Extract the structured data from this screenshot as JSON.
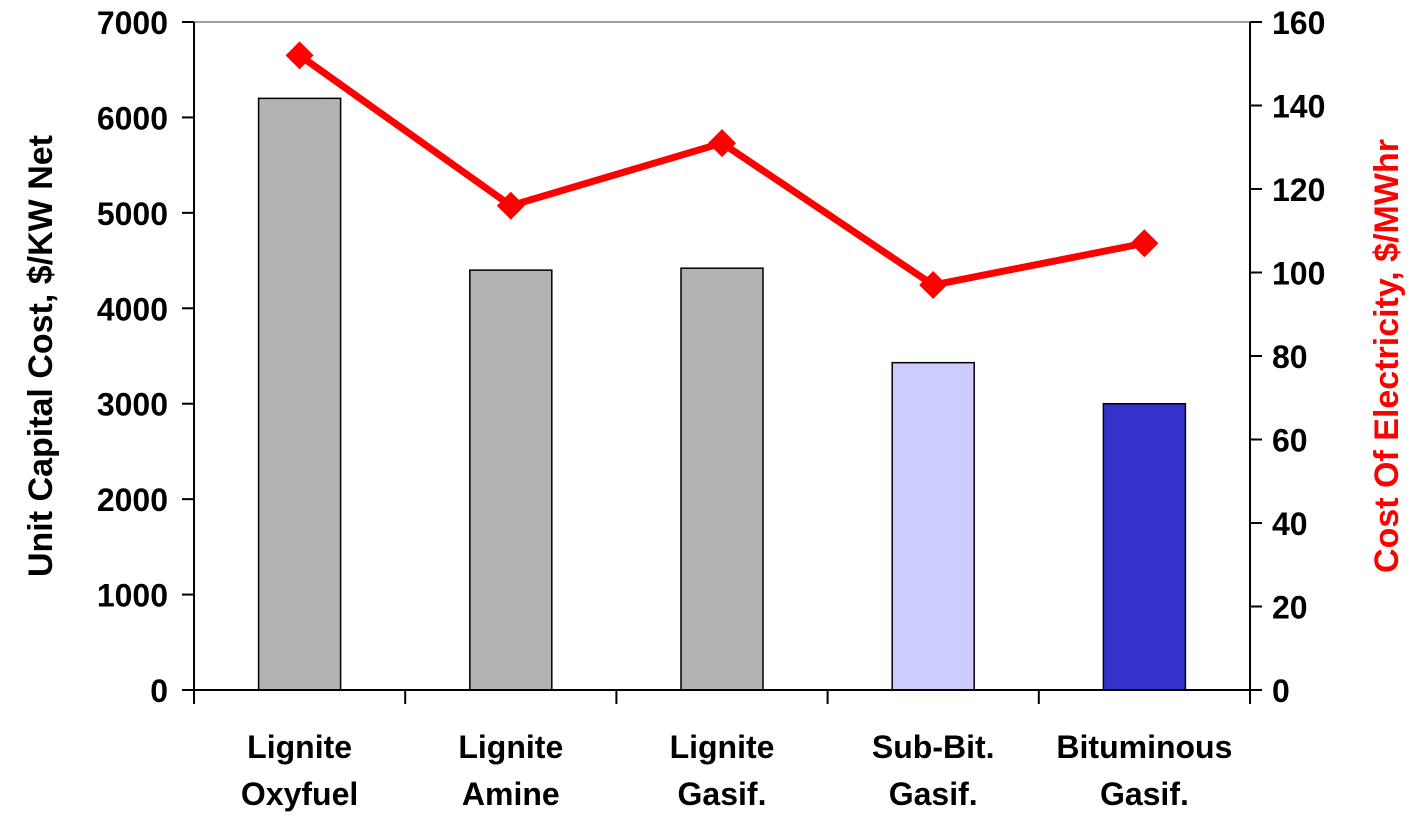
{
  "chart_data": {
    "type": "bar",
    "categories": [
      [
        "Lignite",
        "Oxyfuel"
      ],
      [
        "Lignite",
        "Amine"
      ],
      [
        "Lignite",
        "Gasif."
      ],
      [
        "Sub-Bit.",
        "Gasif."
      ],
      [
        "Bituminous",
        "Gasif."
      ]
    ],
    "series": [
      {
        "axis": "left",
        "kind": "bar",
        "values": [
          6200,
          4400,
          4420,
          3430,
          3000
        ],
        "colors": [
          "#b3b3b3",
          "#b3b3b3",
          "#b3b3b3",
          "#ccccff",
          "#3333cc"
        ]
      },
      {
        "axis": "right",
        "kind": "line",
        "values": [
          152,
          116,
          131,
          97,
          107
        ],
        "color": "#ff0000"
      }
    ],
    "ylabel": "Unit Capital Cost, $/KW Net",
    "ylabel_right": "Cost Of Electricity, $/MWhr",
    "ylabel_right_color": "#ff0000",
    "ylim": [
      0,
      7000
    ],
    "yticks": [
      "0",
      "1000",
      "2000",
      "3000",
      "4000",
      "5000",
      "6000",
      "7000"
    ],
    "ylim_right": [
      0,
      160
    ],
    "yticks_right": [
      "0",
      "20",
      "40",
      "60",
      "80",
      "100",
      "120",
      "140",
      "160"
    ],
    "grid": false,
    "legend": false
  }
}
